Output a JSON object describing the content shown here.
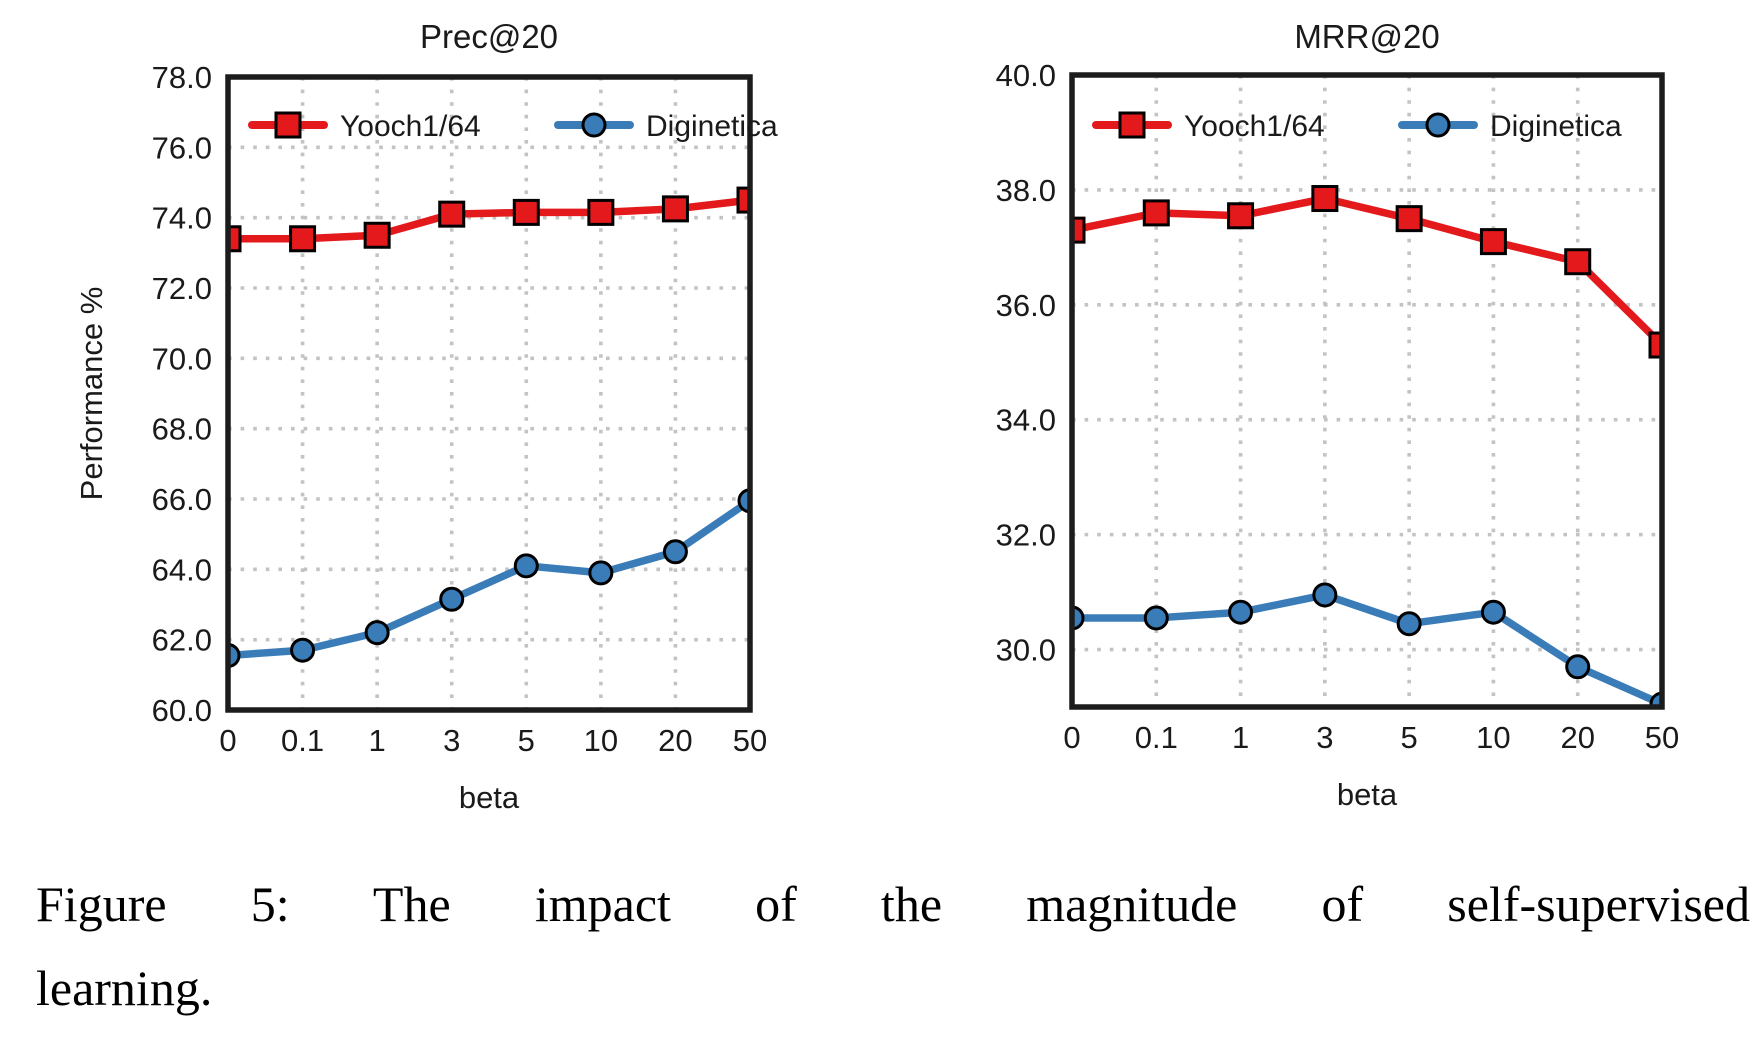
{
  "figure": {
    "caption_line1": "Figure 5: The impact of the magnitude of self-supervised",
    "caption_line2": "learning.",
    "colors": {
      "grid": "#c3c3c3",
      "axis": "#1c1c1c",
      "text": "#1a1a1a"
    }
  },
  "chart_data": [
    {
      "type": "line",
      "title": "Prec@20",
      "xlabel": "beta",
      "ylabel": "Performance %",
      "categories": [
        "0",
        "0.1",
        "1",
        "3",
        "5",
        "10",
        "20",
        "50"
      ],
      "series": [
        {
          "name": "Yooch1/64",
          "color": "#e3191c",
          "marker": "square",
          "values": [
            73.4,
            73.4,
            73.5,
            74.1,
            74.15,
            74.15,
            74.25,
            74.5
          ]
        },
        {
          "name": "Diginetica",
          "color": "#3a7cb8",
          "marker": "circle",
          "values": [
            61.55,
            61.7,
            62.2,
            63.15,
            64.1,
            63.9,
            64.5,
            65.95
          ]
        }
      ],
      "ylim": [
        60.0,
        78.0
      ],
      "yticks": [
        60.0,
        62.0,
        64.0,
        66.0,
        68.0,
        70.0,
        72.0,
        74.0,
        76.0,
        78.0
      ],
      "grid": true,
      "legend_position": "top-inside"
    },
    {
      "type": "line",
      "title": "MRR@20",
      "xlabel": "beta",
      "ylabel": "",
      "categories": [
        "0",
        "0.1",
        "1",
        "3",
        "5",
        "10",
        "20",
        "50"
      ],
      "series": [
        {
          "name": "Yooch1/64",
          "color": "#e3191c",
          "marker": "square",
          "values": [
            37.3,
            37.6,
            37.55,
            37.85,
            37.5,
            37.1,
            36.75,
            35.3
          ]
        },
        {
          "name": "Diginetica",
          "color": "#3a7cb8",
          "marker": "circle",
          "values": [
            30.55,
            30.55,
            30.65,
            30.95,
            30.45,
            30.65,
            29.7,
            29.05
          ]
        }
      ],
      "ylim": [
        29.0,
        40.0
      ],
      "yticks": [
        30.0,
        32.0,
        34.0,
        36.0,
        38.0,
        40.0
      ],
      "grid": true,
      "legend_position": "top-inside"
    }
  ]
}
